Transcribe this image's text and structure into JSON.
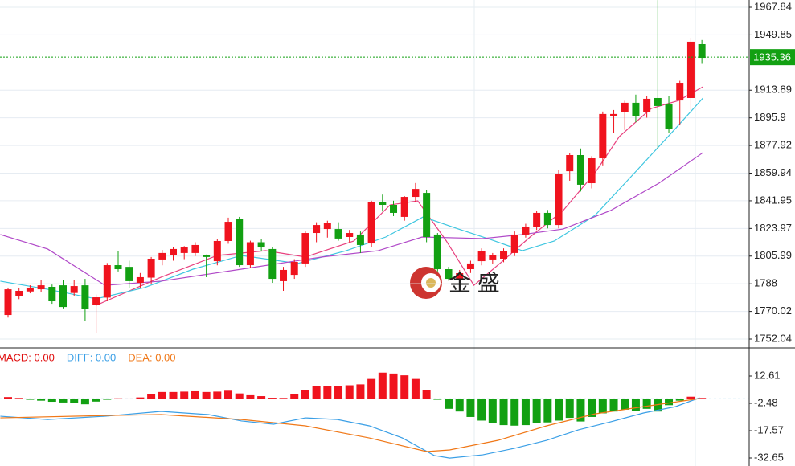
{
  "chart_data": [
    {
      "type": "candlestick",
      "xlim": [
        -0.73,
        67.15
      ],
      "ylim": [
        1746.82,
        1972.54
      ],
      "yticks": [
        1967.84,
        1949.85,
        1913.89,
        1895.9,
        1877.92,
        1859.94,
        1841.95,
        1823.97,
        1805.99,
        1788.0,
        1770.02,
        1752.04
      ],
      "grid": true,
      "up_color": "#f0131e",
      "down_color": "#12a012",
      "open": [
        1767.7,
        1780.0,
        1783.0,
        1784.4,
        1786.0,
        1787.0,
        1782.0,
        1787.0,
        1774.0,
        1779.0,
        1800.1,
        1799.0,
        1788.6,
        1792.0,
        1803.8,
        1806.4,
        1808.0,
        1808.0,
        1806.4,
        1802.7,
        1815.8,
        1830.0,
        1800.1,
        1815.0,
        1810.6,
        1789.7,
        1793.8,
        1801.2,
        1821.0,
        1823.6,
        1823.6,
        1818.4,
        1820.0,
        1814.2,
        1840.9,
        1839.3,
        1831.5,
        1844.5,
        1847.1,
        1820.0,
        1797.5,
        1790.7,
        1797.5,
        1802.7,
        1803.8,
        1804.3,
        1808.0,
        1820.0,
        1825.2,
        1834.1,
        1826.2,
        1861.2,
        1871.7,
        1853.4,
        1869.6,
        1896.8,
        1899.4,
        1905.7,
        1899.4,
        1908.8,
        1904.6,
        1907.2,
        1908.8,
        1943.8
      ],
      "high": [
        1785.5,
        1785.5,
        1787.0,
        1790.2,
        1787.5,
        1790.7,
        1790.7,
        1791.2,
        1781.0,
        1801.5,
        1809.5,
        1803.0,
        1795.0,
        1805.4,
        1810.0,
        1812.0,
        1812.5,
        1815.0,
        1807.0,
        1817.0,
        1831.0,
        1831.5,
        1816.0,
        1817.0,
        1812.0,
        1799.0,
        1804.0,
        1822.0,
        1828.0,
        1829.0,
        1828.0,
        1823.0,
        1822.0,
        1842.0,
        1846.0,
        1842.0,
        1845.0,
        1853.5,
        1849.0,
        1821.0,
        1799.0,
        1797.0,
        1803.0,
        1811.0,
        1808.0,
        1811.0,
        1822.0,
        1827.0,
        1835.5,
        1836.0,
        1862.0,
        1873.0,
        1876.0,
        1871.0,
        1900.0,
        1901.0,
        1907.0,
        1911.0,
        1910.0,
        1972.5,
        1910.0,
        1920.0,
        1948.0,
        1946.5
      ],
      "low": [
        1766.0,
        1778.0,
        1781.8,
        1782.8,
        1775.0,
        1772.0,
        1780.0,
        1764.0,
        1755.7,
        1776.6,
        1796.0,
        1785.0,
        1785.5,
        1788.0,
        1800.0,
        1803.0,
        1804.0,
        1806.0,
        1792.3,
        1800.0,
        1814.0,
        1799.0,
        1798.5,
        1809.0,
        1788.6,
        1783.4,
        1791.2,
        1799.0,
        1815.0,
        1818.0,
        1816.0,
        1815.0,
        1808.0,
        1812.0,
        1835.0,
        1832.0,
        1829.0,
        1841.0,
        1815.0,
        1796.0,
        1790.0,
        1786.0,
        1795.0,
        1800.0,
        1801.0,
        1802.0,
        1806.0,
        1818.0,
        1823.0,
        1824.0,
        1824.0,
        1855.0,
        1848.0,
        1850.0,
        1865.0,
        1886.0,
        1888.0,
        1893.0,
        1896.0,
        1876.0,
        1886.0,
        1891.0,
        1901.0,
        1931.0
      ],
      "close": [
        1784.4,
        1783.4,
        1785.5,
        1787.0,
        1776.6,
        1772.9,
        1786.5,
        1771.4,
        1779.2,
        1800.1,
        1797.5,
        1789.7,
        1792.3,
        1804.3,
        1808.0,
        1810.6,
        1811.6,
        1813.2,
        1805.4,
        1815.8,
        1828.3,
        1800.1,
        1815.0,
        1811.6,
        1791.2,
        1797.0,
        1802.2,
        1821.0,
        1826.2,
        1827.3,
        1817.4,
        1821.0,
        1813.2,
        1840.9,
        1839.3,
        1834.1,
        1844.5,
        1849.7,
        1818.4,
        1797.5,
        1791.2,
        1794.9,
        1801.2,
        1809.5,
        1806.4,
        1809.0,
        1820.0,
        1825.2,
        1834.1,
        1826.2,
        1859.2,
        1871.7,
        1852.4,
        1869.6,
        1898.4,
        1898.4,
        1905.7,
        1896.8,
        1908.3,
        1903.6,
        1888.9,
        1918.7,
        1945.4,
        1934.9
      ],
      "lines": [
        {
          "color": "#e8407e",
          "x": [
            8.0,
            13.9,
            19.0,
            23.4,
            27.0,
            31.4,
            34.7,
            37.2,
            39.8,
            42.3,
            44.9,
            47.4,
            50.4,
            53.3,
            55.5,
            58.4,
            60.9,
            63.1
          ],
          "values": [
            1774.0,
            1792.3,
            1806.4,
            1809.5,
            1805.4,
            1815.8,
            1839.3,
            1841.9,
            1815.8,
            1787.0,
            1802.7,
            1818.4,
            1835.6,
            1860.2,
            1883.7,
            1902.0,
            1907.2,
            1916.1
          ]
        },
        {
          "color": "#3fc6e0",
          "x": [
            -0.7,
            3.6,
            8.0,
            12.4,
            16.8,
            21.2,
            26.3,
            30.7,
            34.3,
            37.7,
            40.9,
            43.8,
            46.7,
            49.6,
            53.3,
            56.9,
            60.6,
            63.1
          ],
          "values": [
            1789.7,
            1784.4,
            1778.2,
            1785.5,
            1797.5,
            1806.4,
            1801.2,
            1809.5,
            1818.4,
            1831.5,
            1823.6,
            1816.8,
            1809.5,
            1815.8,
            1832.5,
            1860.2,
            1888.9,
            1908.8
          ]
        },
        {
          "color": "#b048c8",
          "x": [
            -0.7,
            3.6,
            8.8,
            13.9,
            21.2,
            28.5,
            33.6,
            37.6,
            43.1,
            46.7,
            50.4,
            54.7,
            59.1,
            63.1
          ],
          "values": [
            1820.0,
            1810.6,
            1787.0,
            1789.7,
            1797.5,
            1805.4,
            1809.5,
            1818.4,
            1817.4,
            1820.0,
            1823.6,
            1835.6,
            1853.4,
            1873.3
          ]
        }
      ],
      "last_price": 1935.36,
      "last_price_color": "#12a012",
      "watermark": "金 盛"
    },
    {
      "type": "macd",
      "xlim": [
        -0.73,
        67.15
      ],
      "ylim": [
        -37.09,
        27.26
      ],
      "yticks": [
        12.61,
        -2.48,
        -17.57,
        -32.65
      ],
      "histogram": {
        "name": "MACD: 0.00",
        "color": "#e01010",
        "up_color": "#f0131e",
        "down_color": "#12a012",
        "values": [
          1.0,
          0.5,
          -0.5,
          -1.0,
          -1.6,
          -2.0,
          -2.4,
          -3.0,
          -1.5,
          -0.5,
          0.3,
          0.2,
          0.8,
          2.5,
          3.8,
          3.8,
          4.0,
          4.2,
          3.8,
          4.0,
          4.5,
          3.0,
          2.0,
          1.5,
          0.6,
          0.5,
          2.5,
          5.0,
          7.0,
          7.0,
          7.0,
          7.5,
          8.0,
          11.0,
          14.5,
          14.0,
          13.0,
          11.0,
          5.0,
          -0.5,
          -5.5,
          -7.0,
          -10.0,
          -12.0,
          -13.5,
          -14.5,
          -14.8,
          -14.5,
          -13.5,
          -13.0,
          -12.0,
          -10.5,
          -12.5,
          -10.0,
          -8.0,
          -7.0,
          -6.0,
          -6.5,
          -5.5,
          -7.0,
          -3.5,
          -1.0,
          1.2,
          0.5
        ]
      },
      "lines": [
        {
          "name": "DIFF: 0.00",
          "color": "#3a9fe6",
          "x": [
            -0.7,
            3.6,
            8.8,
            13.9,
            18.2,
            21.2,
            24.1,
            27.0,
            29.9,
            32.8,
            35.8,
            38.7,
            40.1,
            43.1,
            46.0,
            48.9,
            51.8,
            54.7,
            57.7,
            60.6,
            62.8
          ],
          "values": [
            -9.6,
            -11.4,
            -9.6,
            -6.9,
            -8.7,
            -12.2,
            -14.0,
            -10.5,
            -11.4,
            -14.9,
            -21.6,
            -31.3,
            -32.7,
            -30.9,
            -27.3,
            -22.9,
            -17.1,
            -12.7,
            -7.8,
            -4.3,
            0.6
          ]
        },
        {
          "name": "DEA: 0.00",
          "color": "#f07818",
          "x": [
            -0.7,
            8.8,
            13.9,
            21.2,
            27.0,
            32.8,
            38.0,
            40.1,
            44.5,
            48.9,
            53.3,
            57.7,
            62.8
          ],
          "values": [
            -10.5,
            -9.2,
            -8.7,
            -11.4,
            -14.9,
            -21.6,
            -29.1,
            -28.2,
            -22.9,
            -14.9,
            -8.3,
            -4.3,
            0.2
          ]
        }
      ]
    }
  ]
}
